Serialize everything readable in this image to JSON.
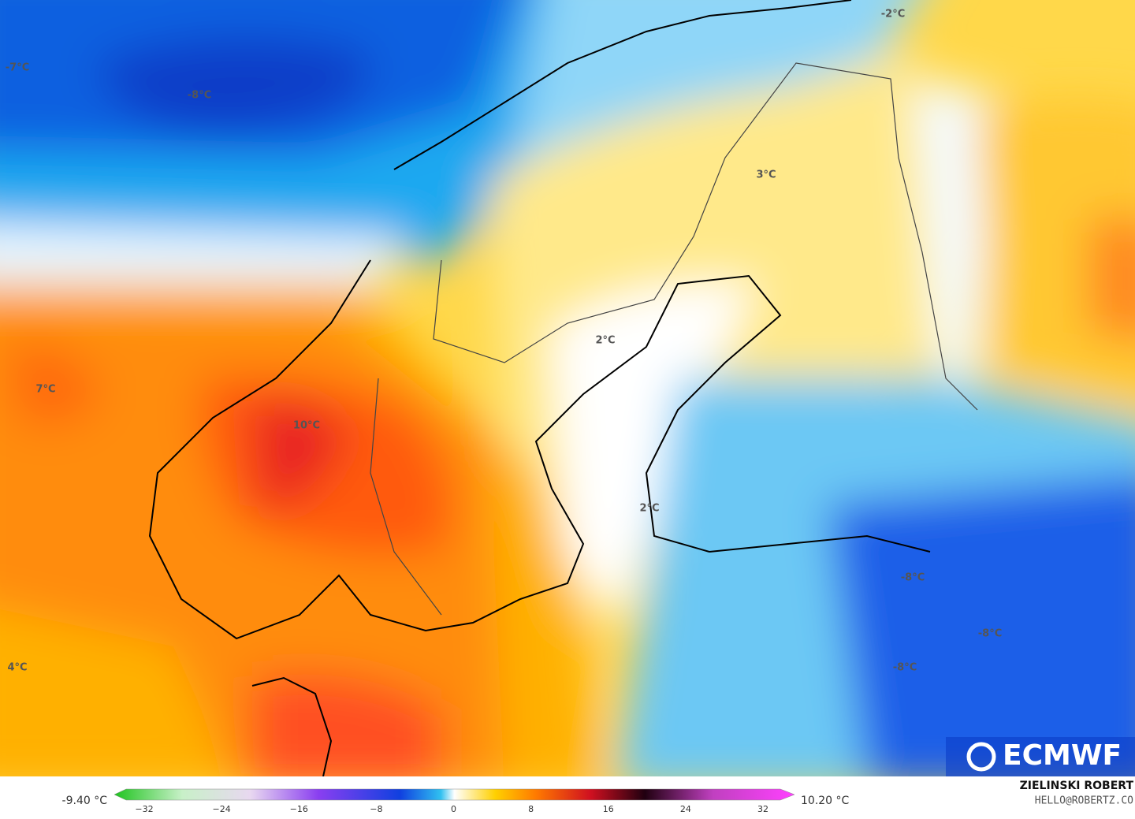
{
  "map": {
    "labels": [
      "-7°C",
      "-8°C",
      "-2°C",
      "3°C",
      "2°C",
      "7°C",
      "10°C",
      "2°C",
      "4°C",
      "-8°C",
      "-8°C",
      "-8°C"
    ],
    "logo": "ECMWF",
    "author": "ZIELINSKI ROBERT",
    "email": "HELLO@ROBERTZ.CO"
  },
  "colorbar": {
    "min_label": "-9.40 °C",
    "max_label": "10.20 °C",
    "ticks": [
      "−32",
      "−24",
      "−16",
      "−8",
      "0",
      "8",
      "16",
      "24",
      "32"
    ]
  }
}
